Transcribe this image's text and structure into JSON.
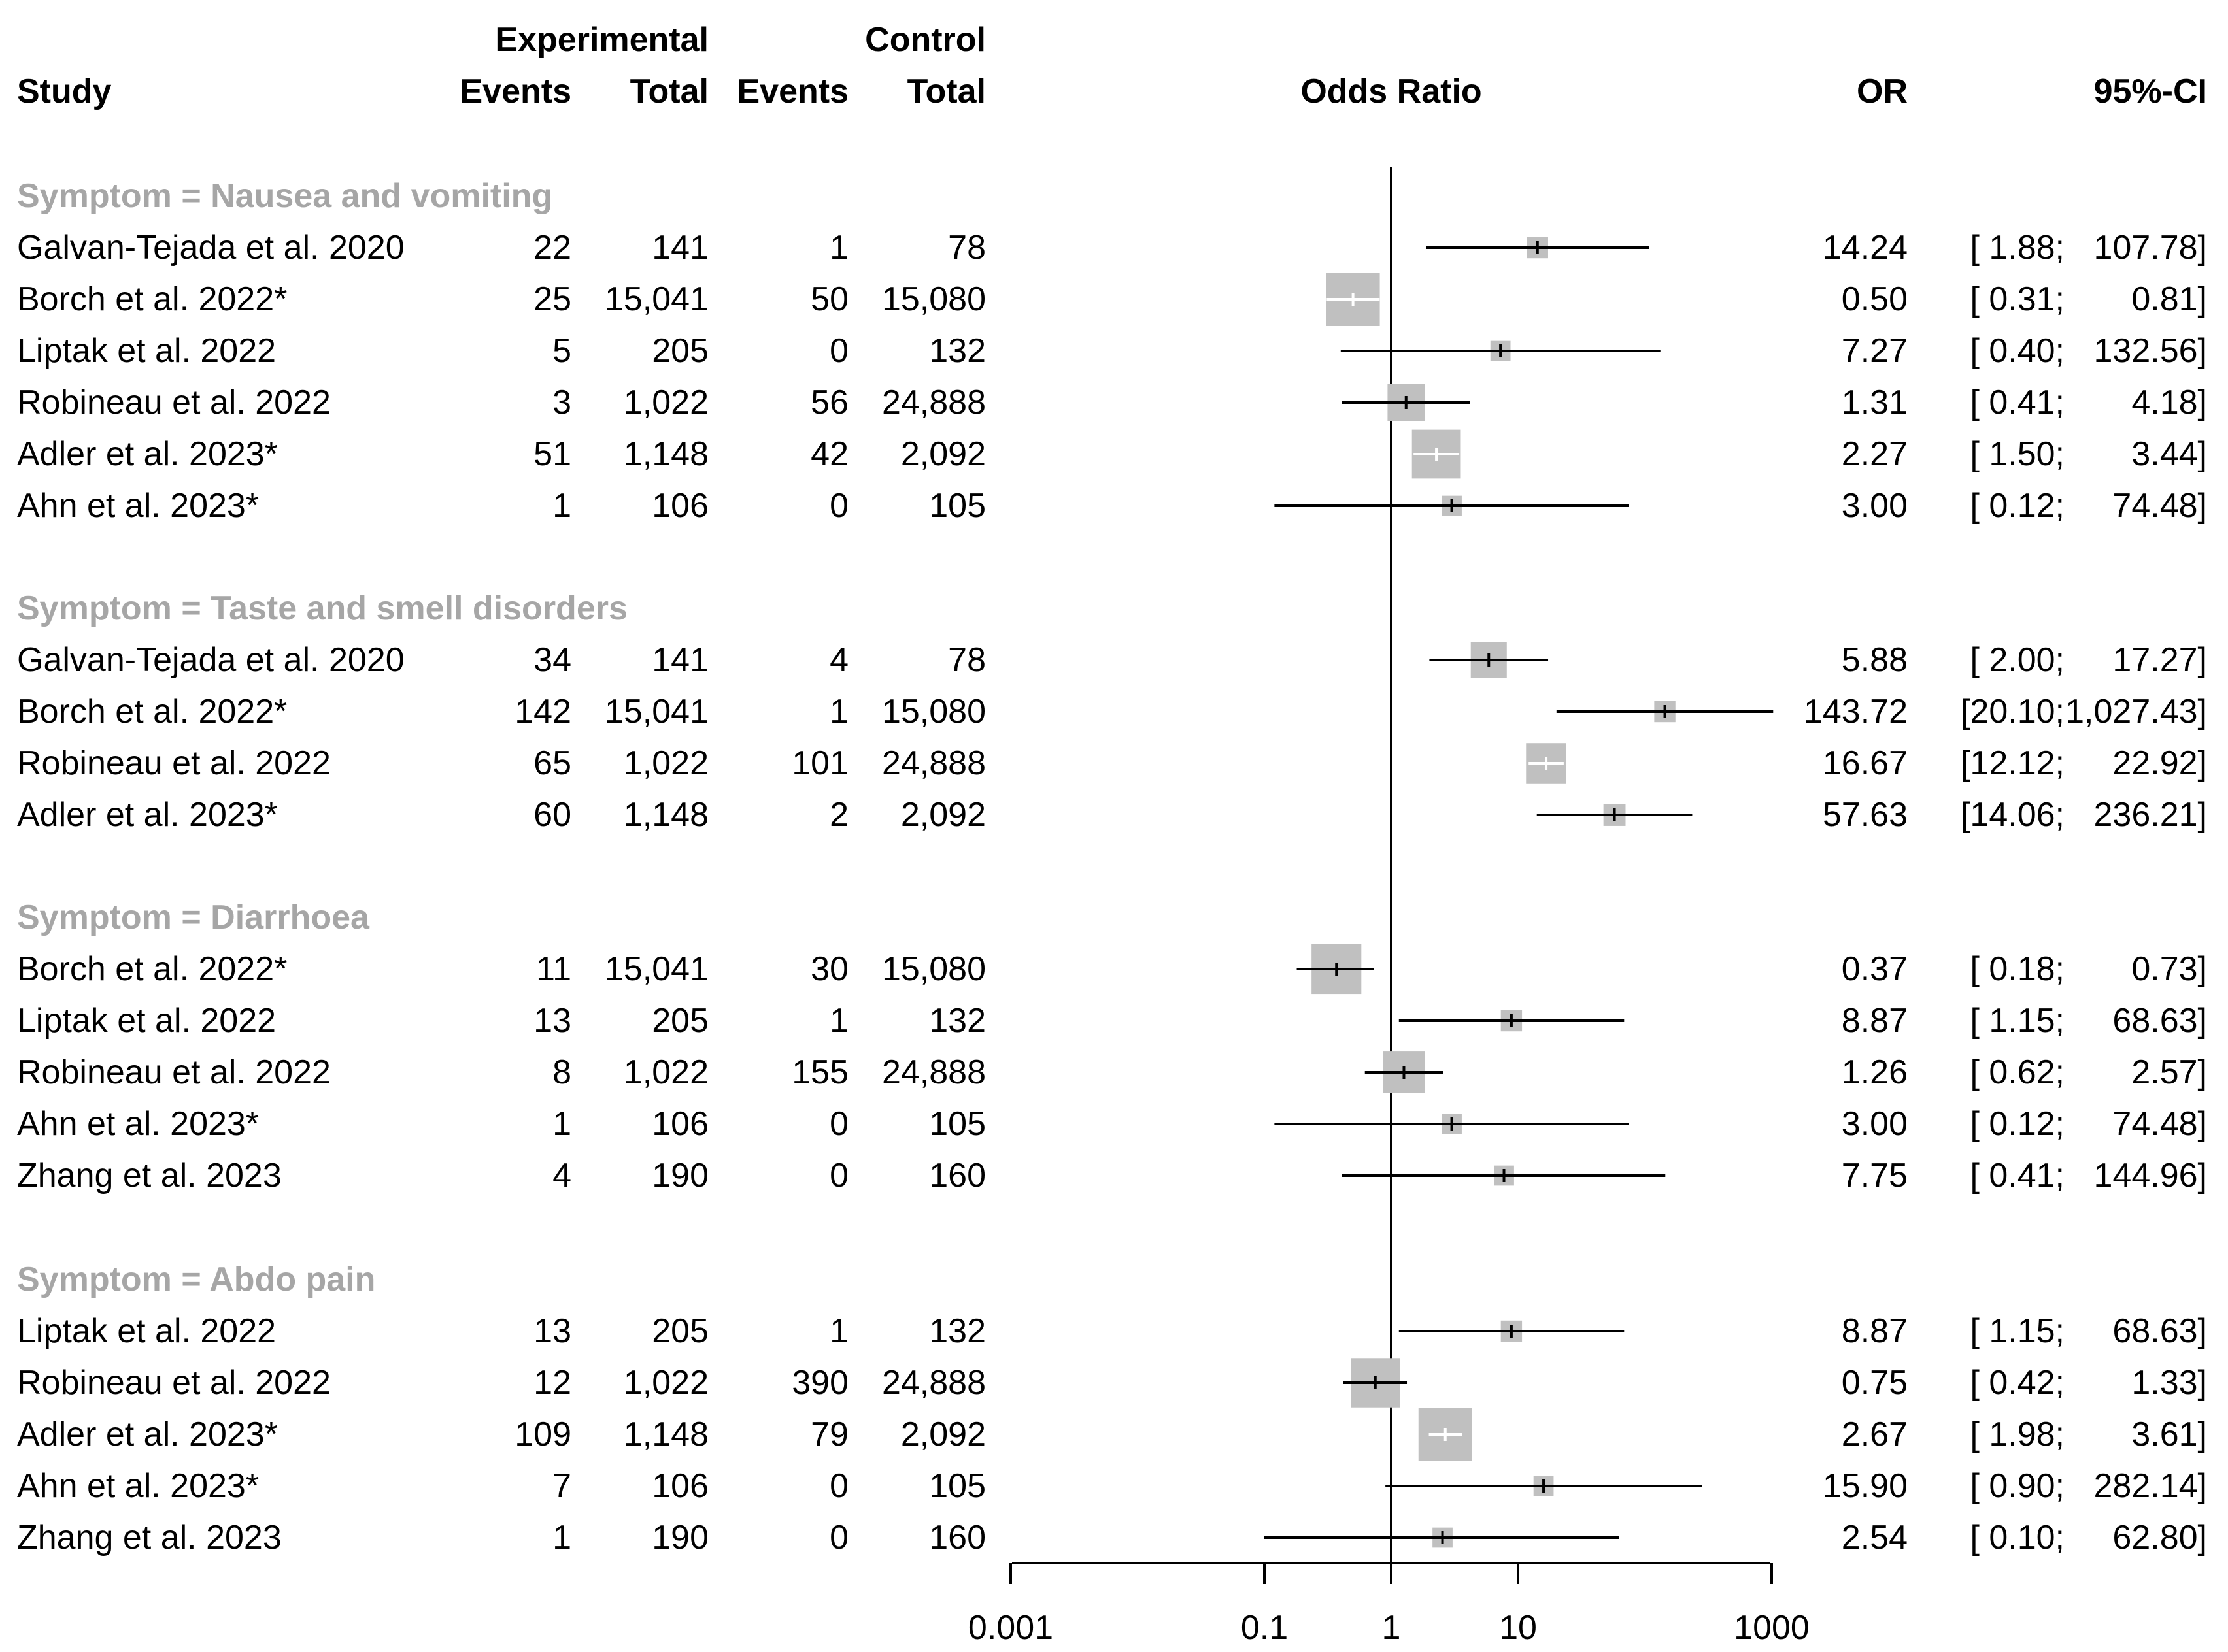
{
  "chart_data": {
    "type": "forest",
    "headers": {
      "experimental": "Experimental",
      "control": "Control",
      "study": "Study",
      "events_exp": "Events",
      "total_exp": "Total",
      "events_ctl": "Events",
      "total_ctl": "Total",
      "odds_ratio": "Odds Ratio",
      "or": "OR",
      "ci": "95%-CI"
    },
    "xaxis": {
      "scale": "log10",
      "range": [
        0.001,
        1000
      ],
      "ticks": [
        0.001,
        0.1,
        1,
        10,
        1000
      ],
      "tick_labels": [
        "0.001",
        "0.1",
        "1",
        "10",
        "1000"
      ],
      "reference_line": 1
    },
    "groups": [
      {
        "title": "Symptom = Nausea and vomiting",
        "studies": [
          {
            "study": "Galvan-Tejada et al. 2020",
            "ev_e": "22",
            "tot_e": "141",
            "ev_c": "1",
            "tot_c": "78",
            "or_text": "14.24",
            "ci_lo_text": "[ 1.88;",
            "ci_hi_text": "107.78]",
            "or": 14.24,
            "lo": 1.88,
            "hi": 107.78,
            "weight": 0.04
          },
          {
            "study": "Borch et al. 2022*",
            "ev_e": "25",
            "tot_e": "15,041",
            "ev_c": "50",
            "tot_c": "15,080",
            "or_text": "0.50",
            "ci_lo_text": "[ 0.31;",
            "ci_hi_text": "0.81]",
            "or": 0.5,
            "lo": 0.31,
            "hi": 0.81,
            "weight": 1.0
          },
          {
            "study": "Liptak et al. 2022",
            "ev_e": "5",
            "tot_e": "205",
            "ev_c": "0",
            "tot_c": "132",
            "or_text": "7.27",
            "ci_lo_text": "[ 0.40;",
            "ci_hi_text": "132.56]",
            "or": 7.27,
            "lo": 0.4,
            "hi": 132.56,
            "weight": 0.03
          },
          {
            "study": "Robineau et al. 2022",
            "ev_e": "3",
            "tot_e": "1,022",
            "ev_c": "56",
            "tot_c": "24,888",
            "or_text": "1.31",
            "ci_lo_text": "[ 0.41;",
            "ci_hi_text": "4.18]",
            "or": 1.31,
            "lo": 0.41,
            "hi": 4.18,
            "weight": 0.35
          },
          {
            "study": "Adler et al. 2023*",
            "ev_e": "51",
            "tot_e": "1,148",
            "ev_c": "42",
            "tot_c": "2,092",
            "or_text": "2.27",
            "ci_lo_text": "[ 1.50;",
            "ci_hi_text": "3.44]",
            "or": 2.27,
            "lo": 1.5,
            "hi": 3.44,
            "weight": 0.78
          },
          {
            "study": "Ahn et al. 2023*",
            "ev_e": "1",
            "tot_e": "106",
            "ev_c": "0",
            "tot_c": "105",
            "or_text": "3.00",
            "ci_lo_text": "[ 0.12;",
            "ci_hi_text": "74.48]",
            "or": 3.0,
            "lo": 0.12,
            "hi": 74.48,
            "weight": 0.03
          }
        ]
      },
      {
        "title": "Symptom = Taste and smell disorders",
        "studies": [
          {
            "study": "Galvan-Tejada et al. 2020",
            "ev_e": "34",
            "tot_e": "141",
            "ev_c": "4",
            "tot_c": "78",
            "or_text": "5.88",
            "ci_lo_text": "[ 2.00;",
            "ci_hi_text": "17.27]",
            "or": 5.88,
            "lo": 2.0,
            "hi": 17.27,
            "weight": 0.32
          },
          {
            "study": "Borch et al. 2022*",
            "ev_e": "142",
            "tot_e": "15,041",
            "ev_c": "1",
            "tot_c": "15,080",
            "or_text": "143.72",
            "ci_lo_text": "[20.10;",
            "ci_hi_text": "1,027.43]",
            "or": 143.72,
            "lo": 20.1,
            "hi": 1027.43,
            "weight": 0.04
          },
          {
            "study": "Robineau et al. 2022",
            "ev_e": "65",
            "tot_e": "1,022",
            "ev_c": "101",
            "tot_c": "24,888",
            "or_text": "16.67",
            "ci_lo_text": "[12.12;",
            "ci_hi_text": "22.92]",
            "or": 16.67,
            "lo": 12.12,
            "hi": 22.92,
            "weight": 0.45
          },
          {
            "study": "Adler et al. 2023*",
            "ev_e": "60",
            "tot_e": "1,148",
            "ev_c": "2",
            "tot_c": "2,092",
            "or_text": "57.63",
            "ci_lo_text": "[14.06;",
            "ci_hi_text": "236.21]",
            "or": 57.63,
            "lo": 14.06,
            "hi": 236.21,
            "weight": 0.05
          }
        ]
      },
      {
        "title": "Symptom = Diarrhoea",
        "studies": [
          {
            "study": "Borch et al. 2022*",
            "ev_e": "11",
            "tot_e": "15,041",
            "ev_c": "30",
            "tot_c": "15,080",
            "or_text": "0.37",
            "ci_lo_text": "[ 0.18;",
            "ci_hi_text": "0.73]",
            "or": 0.37,
            "lo": 0.18,
            "hi": 0.73,
            "weight": 0.82
          },
          {
            "study": "Liptak et al. 2022",
            "ev_e": "13",
            "tot_e": "205",
            "ev_c": "1",
            "tot_c": "132",
            "or_text": "8.87",
            "ci_lo_text": "[ 1.15;",
            "ci_hi_text": "68.63]",
            "or": 8.87,
            "lo": 1.15,
            "hi": 68.63,
            "weight": 0.04
          },
          {
            "study": "Robineau et al. 2022",
            "ev_e": "8",
            "tot_e": "1,022",
            "ev_c": "155",
            "tot_c": "24,888",
            "or_text": "1.26",
            "ci_lo_text": "[ 0.62;",
            "ci_hi_text": "2.57]",
            "or": 1.26,
            "lo": 0.62,
            "hi": 2.57,
            "weight": 0.5
          },
          {
            "study": "Ahn et al. 2023*",
            "ev_e": "1",
            "tot_e": "106",
            "ev_c": "0",
            "tot_c": "105",
            "or_text": "3.00",
            "ci_lo_text": "[ 0.12;",
            "ci_hi_text": "74.48]",
            "or": 3.0,
            "lo": 0.12,
            "hi": 74.48,
            "weight": 0.03
          },
          {
            "study": "Zhang et al. 2023",
            "ev_e": "4",
            "tot_e": "190",
            "ev_c": "0",
            "tot_c": "160",
            "or_text": "7.75",
            "ci_lo_text": "[ 0.41;",
            "ci_hi_text": "144.96]",
            "or": 7.75,
            "lo": 0.41,
            "hi": 144.96,
            "weight": 0.03
          }
        ]
      },
      {
        "title": "Symptom = Abdo pain",
        "studies": [
          {
            "study": "Liptak et al. 2022",
            "ev_e": "13",
            "tot_e": "205",
            "ev_c": "1",
            "tot_c": "132",
            "or_text": "8.87",
            "ci_lo_text": "[ 1.15;",
            "ci_hi_text": "68.63]",
            "or": 8.87,
            "lo": 1.15,
            "hi": 68.63,
            "weight": 0.04
          },
          {
            "study": "Robineau et al. 2022",
            "ev_e": "12",
            "tot_e": "1,022",
            "ev_c": "390",
            "tot_c": "24,888",
            "or_text": "0.75",
            "ci_lo_text": "[ 0.42;",
            "ci_hi_text": "1.33]",
            "or": 0.75,
            "lo": 0.42,
            "hi": 1.33,
            "weight": 0.8
          },
          {
            "study": "Adler et al. 2023*",
            "ev_e": "109",
            "tot_e": "1,148",
            "ev_c": "79",
            "tot_c": "2,092",
            "or_text": "2.67",
            "ci_lo_text": "[ 1.98;",
            "ci_hi_text": "3.61]",
            "or": 2.67,
            "lo": 1.98,
            "hi": 3.61,
            "weight": 1.0
          },
          {
            "study": "Ahn et al. 2023*",
            "ev_e": "7",
            "tot_e": "106",
            "ev_c": "0",
            "tot_c": "105",
            "or_text": "15.90",
            "ci_lo_text": "[ 0.90;",
            "ci_hi_text": "282.14]",
            "or": 15.9,
            "lo": 0.9,
            "hi": 282.14,
            "weight": 0.03
          },
          {
            "study": "Zhang et al. 2023",
            "ev_e": "1",
            "tot_e": "190",
            "ev_c": "0",
            "tot_c": "160",
            "or_text": "2.54",
            "ci_lo_text": "[ 0.10;",
            "ci_hi_text": "62.80]",
            "or": 2.54,
            "lo": 0.1,
            "hi": 62.8,
            "weight": 0.03
          }
        ]
      }
    ]
  }
}
